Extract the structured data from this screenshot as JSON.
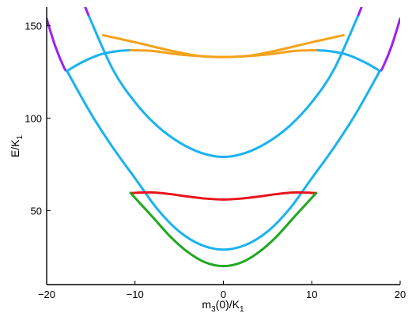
{
  "chart_data": {
    "type": "line",
    "xlabel": {
      "base": "m",
      "sub": "3",
      "rest": "(0)/K",
      "sub2": "1"
    },
    "ylabel": {
      "base": "E/K",
      "sub": "1"
    },
    "xlim": [
      -20,
      20
    ],
    "ylim": [
      10,
      160
    ],
    "xticks": [
      -20,
      -10,
      0,
      10,
      20
    ],
    "xtick_labels": [
      "−20",
      "−10",
      "0",
      "10",
      "20"
    ],
    "yticks": [
      50,
      100,
      150
    ],
    "ytick_labels": [
      "50",
      "100",
      "150"
    ],
    "grid": false,
    "legend": "none",
    "colors": {
      "blue": "#19b2f0",
      "purple": "#a020f0",
      "orange": "#f4a21c",
      "red": "#e8141c",
      "green": "#20a820"
    },
    "series": [
      {
        "color": "purple",
        "x": [
          -20,
          -19,
          -18,
          -17.7
        ],
        "y": [
          153.7,
          138.5,
          127.0,
          125.5
        ]
      },
      {
        "color": "purple",
        "x": [
          17.7,
          18,
          19,
          20
        ],
        "y": [
          125.5,
          127.0,
          138.5,
          153.7
        ]
      },
      {
        "color": "purple",
        "x": [
          -15.8,
          -15.5,
          -15.2
        ],
        "y": [
          162,
          158.4,
          154.9
        ]
      },
      {
        "color": "purple",
        "x": [
          15.2,
          15.5,
          15.8
        ],
        "y": [
          154.9,
          158.4,
          162
        ]
      },
      {
        "color": "blue",
        "x": [
          -17.7,
          -15,
          -12.5,
          -10,
          -7.5,
          -5,
          -2.5,
          0,
          2.5,
          5,
          7.5,
          10,
          12.5,
          15,
          17.7
        ],
        "y": [
          125.5,
          102.5,
          84.0,
          67.5,
          51.0,
          38.7,
          31.4,
          28.9,
          31.4,
          38.7,
          51.0,
          67.5,
          84.0,
          102.5,
          125.5
        ]
      },
      {
        "color": "blue",
        "x": [
          -17.7,
          -16,
          -14,
          -12,
          -10.5
        ],
        "y": [
          125.5,
          130.2,
          134.3,
          136.2,
          136.7
        ]
      },
      {
        "color": "blue",
        "x": [
          10.5,
          12,
          14,
          16,
          17.7
        ],
        "y": [
          136.7,
          136.2,
          134.3,
          130.2,
          125.5
        ]
      },
      {
        "color": "blue",
        "x": [
          -15.2,
          -12.5,
          -10,
          -7.5,
          -5,
          -2.5,
          0,
          2.5,
          5,
          7.5,
          10,
          12.5,
          15.2
        ],
        "y": [
          154.9,
          126.2,
          108.6,
          95.8,
          86.9,
          81.2,
          79.0,
          81.2,
          86.9,
          95.8,
          108.6,
          126.2,
          154.9
        ]
      },
      {
        "color": "orange",
        "x": [
          -13.6,
          -10,
          -6,
          -3,
          0,
          3,
          6,
          10,
          13.6
        ],
        "y": [
          144.8,
          141.0,
          136.5,
          133.8,
          133.0,
          133.8,
          136.5,
          141.0,
          144.8
        ]
      },
      {
        "color": "orange",
        "x": [
          -10.5,
          -8,
          -5,
          -2,
          0,
          2,
          5,
          8,
          10.5
        ],
        "y": [
          136.7,
          136.3,
          134.4,
          133.3,
          133.0,
          133.3,
          134.4,
          136.3,
          136.7
        ]
      },
      {
        "color": "red",
        "x": [
          -10.5,
          -8,
          -6,
          -4,
          -2,
          0,
          2,
          4,
          6,
          8,
          10.5
        ],
        "y": [
          59.5,
          59.8,
          58.9,
          57.6,
          56.5,
          56.0,
          56.5,
          57.6,
          58.9,
          59.8,
          59.5
        ]
      },
      {
        "color": "green",
        "x": [
          -10.5,
          -8,
          -6,
          -4,
          -2,
          0,
          2,
          4,
          6,
          8,
          10.5
        ],
        "y": [
          59.5,
          46.5,
          35.9,
          27.5,
          21.9,
          20.0,
          21.9,
          27.5,
          35.9,
          46.5,
          59.5
        ]
      }
    ]
  }
}
